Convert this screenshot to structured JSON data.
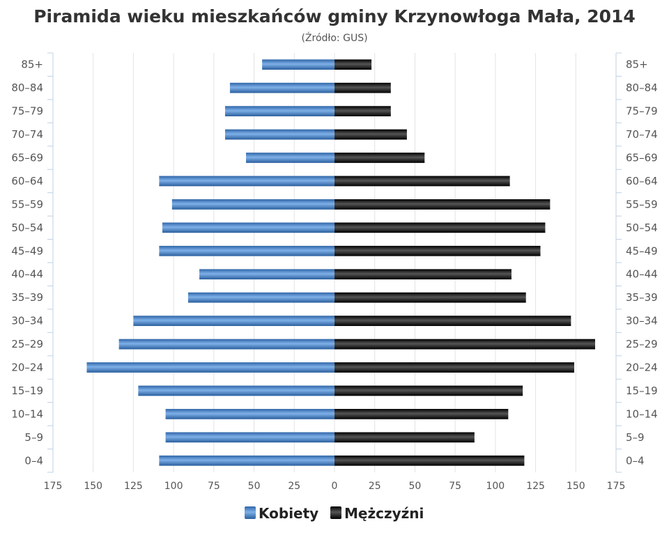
{
  "chart_data": {
    "type": "bar",
    "title": "Piramida wieku mieszkańców gminy Krzynowłoga Mała, 2014",
    "subtitle": "(Źródło: GUS)",
    "categories": [
      "85+",
      "80–84",
      "75–79",
      "70–74",
      "65–69",
      "60–64",
      "55–59",
      "50–54",
      "45–49",
      "40–44",
      "35–39",
      "30–34",
      "25–29",
      "20–24",
      "15–19",
      "10–14",
      "5–9",
      "0–4"
    ],
    "series": [
      {
        "name": "Kobiety",
        "color": "#3d7cc4",
        "values": [
          45,
          65,
          68,
          68,
          55,
          109,
          101,
          107,
          109,
          84,
          91,
          125,
          134,
          154,
          122,
          105,
          105,
          109
        ]
      },
      {
        "name": "Mężczyźni",
        "color": "#1a1a1a",
        "values": [
          23,
          35,
          35,
          45,
          56,
          109,
          134,
          131,
          128,
          110,
          119,
          147,
          162,
          149,
          117,
          108,
          87,
          118
        ]
      }
    ],
    "xlim": [
      -175,
      175
    ],
    "xticks": [
      -175,
      -150,
      -125,
      -100,
      -75,
      -50,
      -25,
      0,
      25,
      50,
      75,
      100,
      125,
      150,
      175
    ],
    "xtick_labels": [
      "175",
      "150",
      "125",
      "100",
      "75",
      "50",
      "25",
      "0",
      "25",
      "50",
      "75",
      "100",
      "125",
      "150",
      "175"
    ],
    "grid": true,
    "legend": "bottom-center"
  }
}
